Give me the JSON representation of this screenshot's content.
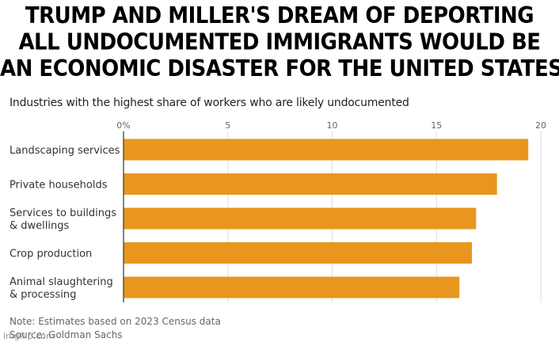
{
  "meme": {
    "line1": "TRUMP AND MILLER'S DREAM OF DEPORTING",
    "line2": "ALL UNDOCUMENTED IMMIGRANTS WOULD BE",
    "line3": "AN ECONOMIC DISASTER FOR THE UNITED STATES."
  },
  "chart_data": {
    "type": "bar",
    "orientation": "horizontal",
    "title": "Industries with the highest share of workers who are likely undocumented",
    "categories": [
      [
        "Landscaping services"
      ],
      [
        "Private households"
      ],
      [
        "Services to buildings",
        "& dwellings"
      ],
      [
        "Crop production"
      ],
      [
        "Animal slaughtering",
        "& processing"
      ]
    ],
    "values": [
      19.4,
      17.9,
      16.9,
      16.7,
      16.1
    ],
    "xlim": [
      0,
      20
    ],
    "xticks": [
      0,
      5,
      10,
      15,
      20
    ],
    "xtick_labels": [
      "0%",
      "5",
      "10",
      "15",
      "20"
    ],
    "grid": true,
    "bar_color": "#E8961E"
  },
  "footer": {
    "note": "Note: Estimates based on 2023 Census data",
    "source": "Source: Goldman Sachs",
    "watermark": "imgflip.com"
  }
}
